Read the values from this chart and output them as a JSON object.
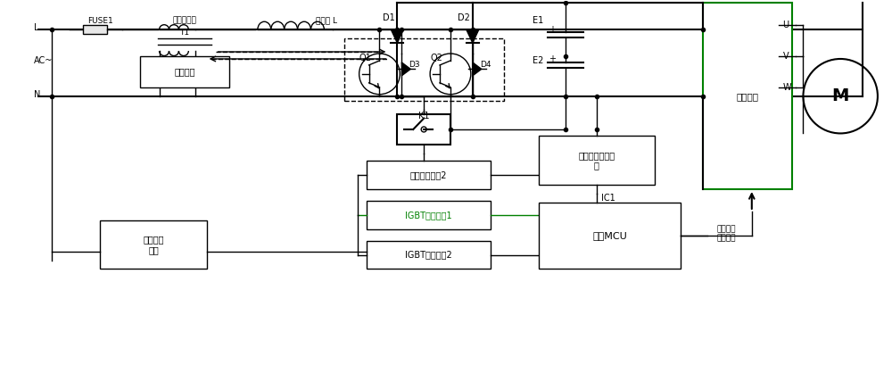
{
  "bg_color": "#ffffff",
  "line_color": "#000000",
  "dashed_color": "#000000",
  "green_color": "#008000",
  "gray_color": "#808080",
  "title": "",
  "labels": {
    "L": "L",
    "AC": "AC~",
    "N": "N",
    "FUSE1": "FUSE1",
    "T1": "T1",
    "current_sensor": "电流传感器",
    "current_detect": "电流检测",
    "inductor": "电抗器 L",
    "D1": "D1",
    "D2": "D2",
    "D3": "D3",
    "D4": "D4",
    "Q1": "Q1",
    "Q2": "Q2",
    "K1": "K1",
    "E1": "E1",
    "E2": "E2",
    "zero_detect": "过零检测\n电路",
    "switch_drive": "开关驱动单元2",
    "igbt_drive1": "IGBT驱动单元1",
    "igbt_drive2": "IGBT驱动单元2",
    "dc_voltage": "直流母线电压检\n测",
    "IC1": "IC1",
    "mcu": "主控MCU",
    "drive_module": "驱动模块",
    "motor_drive": "电机或压\n缩机驱动",
    "U": "U",
    "V": "V",
    "W": "W",
    "M": "M"
  }
}
